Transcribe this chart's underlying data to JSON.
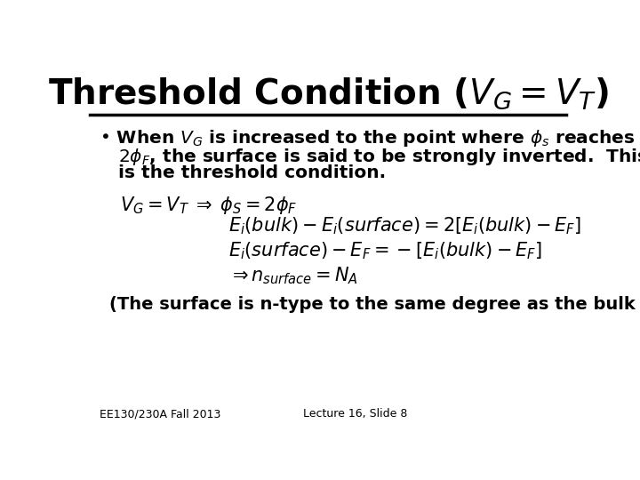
{
  "title": "Threshold Condition ($V_G = V_T$)",
  "title_fontsize": 28,
  "background_color": "#ffffff",
  "text_color": "#000000",
  "bullet_text_line1": "• When $V_G$ is increased to the point where $\\phi_s$ reaches",
  "bullet_text_line2": "   $2\\phi_F$, the surface is said to be strongly inverted.  This",
  "bullet_text_line3": "   is the threshold condition.",
  "eq1": "$V_G = V_T \\;\\Rightarrow\\; \\phi_S = 2\\phi_F$",
  "eq2": "$E_i(bulk) - E_i(surface) = 2\\left[E_i(bulk) - E_F\\right]$",
  "eq3": "$E_i(surface) - E_F = -\\left[E_i(bulk) - E_F\\right]$",
  "eq4": "$\\Rightarrow n_{surface} = N_A$",
  "footnote_left": "EE130/230A Fall 2013",
  "footnote_right": "Lecture 16, Slide 8",
  "italic_note": "(The surface is n-type to the same degree as the bulk is p-type.)"
}
